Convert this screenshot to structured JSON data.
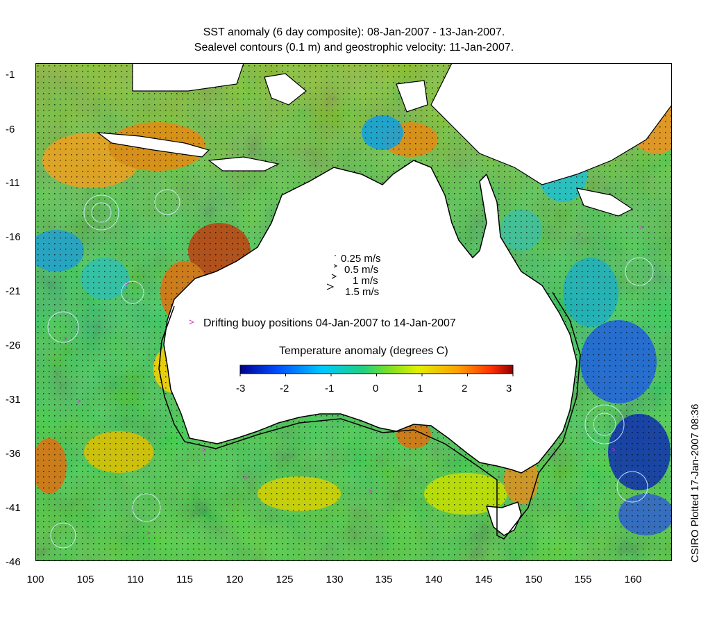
{
  "title_line1": "SST anomaly (6 day composite): 08-Jan-2007 - 13-Jan-2007.",
  "title_line2": "Sealevel contours (0.1 m) and geostrophic velocity: 11-Jan-2007.",
  "axes": {
    "x_ticks": [
      "100",
      "105",
      "110",
      "115",
      "120",
      "125",
      "130",
      "135",
      "140",
      "145",
      "150",
      "155",
      "160"
    ],
    "y_ticks": [
      "-1",
      "-6",
      "-11",
      "-16",
      "-21",
      "-26",
      "-31",
      "-36",
      "-41",
      "-46"
    ],
    "lon_range": [
      100,
      164
    ],
    "lat_range": [
      -46,
      0
    ]
  },
  "velocity_legend": [
    "0.25 m/s",
    "0.5 m/s",
    "1 m/s",
    "1.5 m/s"
  ],
  "buoy_legend": "Drifting buoy positions 04-Jan-2007 to 14-Jan-2007",
  "buoy_marker": ">",
  "colorbar": {
    "title": "Temperature anomaly (degrees C)",
    "ticks": [
      "-3",
      "-2",
      "-1",
      "0",
      "1",
      "2",
      "3"
    ],
    "range": [
      -3,
      3
    ],
    "colors": [
      "#00008f",
      "#0050ff",
      "#00c8ff",
      "#20d080",
      "#c8f000",
      "#ffc000",
      "#ff5000",
      "#a00000"
    ]
  },
  "stamp": "CSIRO Plotted 17-Jan-2007 08:36",
  "colors": {
    "land": "#ffffff",
    "coast": "#000000",
    "contours": "#cfe8ff",
    "buoys": "#cc33cc",
    "shelf_line": "#000000"
  }
}
